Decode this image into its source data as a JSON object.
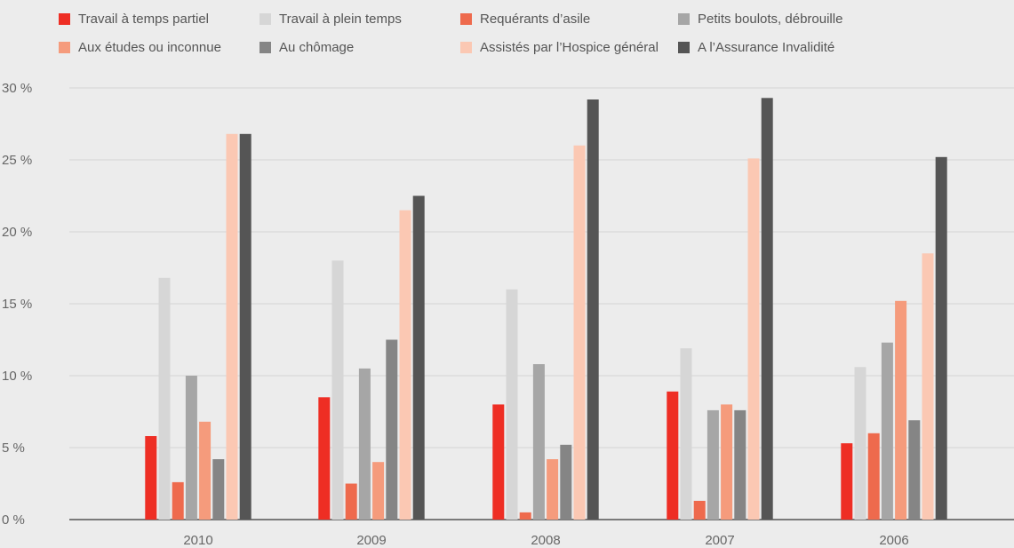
{
  "chart_data": {
    "type": "bar",
    "categories": [
      "2010",
      "2009",
      "2008",
      "2007",
      "2006"
    ],
    "series": [
      {
        "name": "Travail à temps partiel",
        "color": "#ee2e24",
        "values": [
          5.8,
          8.5,
          8.0,
          8.9,
          5.3
        ]
      },
      {
        "name": "Travail à plein temps",
        "color": "#d6d6d6",
        "values": [
          16.8,
          18.0,
          16.0,
          11.9,
          10.6
        ]
      },
      {
        "name": "Requérants d’asile",
        "color": "#ee6a4d",
        "values": [
          2.6,
          2.5,
          0.5,
          1.3,
          6.0
        ]
      },
      {
        "name": "Petits boulots, débrouille",
        "color": "#a6a6a6",
        "values": [
          10.0,
          10.5,
          10.8,
          7.6,
          12.3
        ]
      },
      {
        "name": "Aux études ou inconnue",
        "color": "#f59b7c",
        "values": [
          6.8,
          4.0,
          4.2,
          8.0,
          15.2
        ]
      },
      {
        "name": "Au chômage",
        "color": "#858585",
        "values": [
          4.2,
          12.5,
          5.2,
          7.6,
          6.9
        ]
      },
      {
        "name": "Assistés par l’Hospice général",
        "color": "#fbc8b3",
        "values": [
          26.8,
          21.5,
          26.0,
          25.1,
          18.5
        ]
      },
      {
        "name": "A l’Assurance Invalidité",
        "color": "#555555",
        "values": [
          26.8,
          22.5,
          29.2,
          29.3,
          25.2
        ]
      }
    ],
    "yticks": [
      "0 %",
      "5 %",
      "10 %",
      "15 %",
      "20 %",
      "25 %",
      "30 %"
    ],
    "ylim": [
      0,
      30
    ],
    "grid": true,
    "legend": "top",
    "title": "",
    "xlabel": "",
    "ylabel": ""
  }
}
